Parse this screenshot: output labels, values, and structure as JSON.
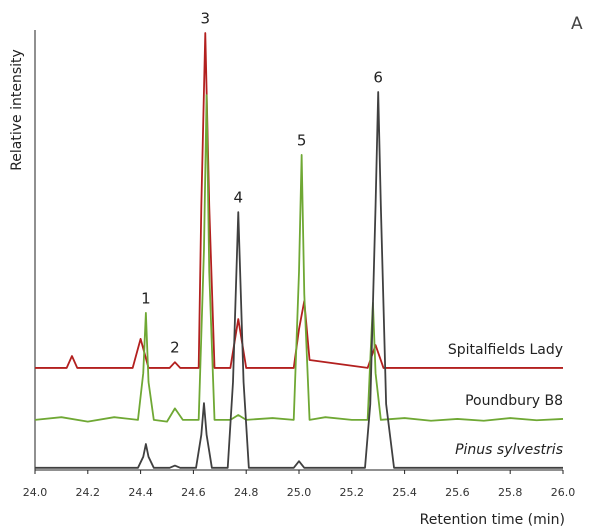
{
  "chart_data": {
    "type": "line",
    "panel_label": "A",
    "xlabel": "Retention time (min)",
    "ylabel": "Relative intensity",
    "xlim": [
      24.0,
      26.0
    ],
    "ylim": [
      0,
      100
    ],
    "xticks": [
      {
        "value": 24.0,
        "label": "24.0"
      },
      {
        "value": 24.2,
        "label": "24.2"
      },
      {
        "value": 24.4,
        "label": "24.4"
      },
      {
        "value": 24.6,
        "label": "24.6"
      },
      {
        "value": 24.8,
        "label": "24.8"
      },
      {
        "value": 25.0,
        "label": "25.0"
      },
      {
        "value": 25.2,
        "label": "25.2"
      },
      {
        "value": 25.4,
        "label": "25.4"
      },
      {
        "value": 25.6,
        "label": "25.6"
      },
      {
        "value": 25.8,
        "label": "25.8"
      },
      {
        "value": 26.0,
        "label": "26.0"
      }
    ],
    "series": [
      {
        "name": "Spitalfields Lady",
        "color": "#b3201f",
        "italic": false,
        "x": [
          24.0,
          24.12,
          24.14,
          24.16,
          24.37,
          24.4,
          24.43,
          24.51,
          24.53,
          24.55,
          24.62,
          24.63,
          24.645,
          24.66,
          24.68,
          24.74,
          24.77,
          24.8,
          24.98,
          25.0,
          25.02,
          25.04,
          25.26,
          25.29,
          25.32,
          26.0
        ],
        "values": [
          23.2,
          23.2,
          25.9,
          23.2,
          23.2,
          29.8,
          23.2,
          23.2,
          24.5,
          23.2,
          23.2,
          60,
          99.3,
          60,
          23.2,
          23.2,
          34.3,
          23.2,
          23.2,
          32,
          38.4,
          25,
          23.2,
          28.4,
          23.2,
          23.2
        ]
      },
      {
        "name": "Poundbury B8",
        "color": "#6fa834",
        "italic": false,
        "x": [
          24.0,
          24.1,
          24.2,
          24.3,
          24.39,
          24.41,
          24.42,
          24.43,
          24.45,
          24.5,
          24.53,
          24.56,
          24.62,
          24.64,
          24.65,
          24.66,
          24.68,
          24.74,
          24.77,
          24.8,
          24.9,
          24.98,
          25.0,
          25.01,
          25.02,
          25.04,
          25.1,
          25.2,
          25.26,
          25.27,
          25.28,
          25.29,
          25.31,
          25.4,
          25.5,
          25.6,
          25.7,
          25.8,
          25.9,
          26.0
        ],
        "values": [
          11.4,
          12,
          11,
          12,
          11.4,
          22,
          35.7,
          20,
          11.4,
          11,
          14,
          11.4,
          11.4,
          50,
          85.2,
          45,
          11.4,
          11.4,
          12.5,
          11.4,
          11.8,
          11.4,
          45,
          71.6,
          40,
          11.4,
          12,
          11.4,
          11.4,
          25,
          38,
          22,
          11.4,
          11.8,
          11.2,
          11.6,
          11.2,
          11.8,
          11.3,
          11.6
        ]
      },
      {
        "name": "Pinus sylvestris",
        "color": "#404040",
        "italic": true,
        "x": [
          24.0,
          24.39,
          24.41,
          24.42,
          24.43,
          24.45,
          24.51,
          24.53,
          24.55,
          24.61,
          24.63,
          24.64,
          24.65,
          24.67,
          24.73,
          24.75,
          24.77,
          24.79,
          24.81,
          24.98,
          25.0,
          25.02,
          25.25,
          25.27,
          25.29,
          25.3,
          25.31,
          25.33,
          25.36,
          26.0
        ],
        "values": [
          0.5,
          0.5,
          3,
          5.9,
          3,
          0.5,
          0.5,
          1,
          0.5,
          0.5,
          8,
          15.2,
          8,
          0.5,
          0.5,
          20,
          58.6,
          20,
          0.5,
          0.5,
          2,
          0.5,
          0.5,
          15,
          60,
          85.9,
          60,
          15,
          0.5,
          0.5
        ]
      }
    ],
    "annotations": [
      {
        "label": "1",
        "x": 24.42
      },
      {
        "label": "2",
        "x": 24.53
      },
      {
        "label": "3",
        "x": 24.645
      },
      {
        "label": "4",
        "x": 24.77
      },
      {
        "label": "5",
        "x": 25.01
      },
      {
        "label": "6",
        "x": 25.3
      }
    ]
  }
}
